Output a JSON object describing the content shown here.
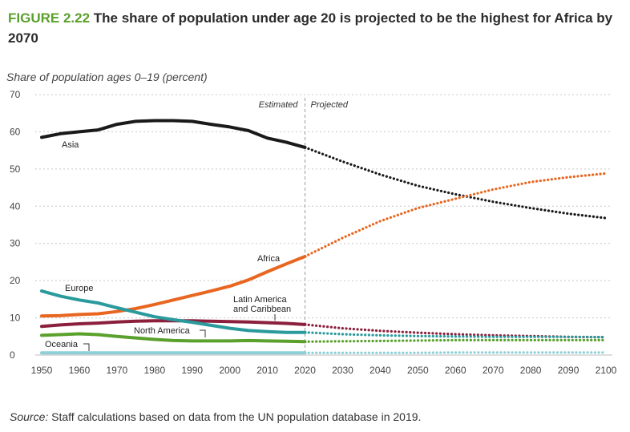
{
  "figure": {
    "label": "FIGURE 2.22",
    "title": "The share of population under age 20 is projected to be the highest for Africa by 2070",
    "subtitle": "Share of population ages 0–19 (percent)",
    "source_label": "Source:",
    "source_text": "Staff calculations based on data from the UN population database in 2019."
  },
  "chart_data": {
    "type": "line",
    "title": "The share of population under age 20 is projected to be the highest for Africa by 2070",
    "ylabel": "Share of population ages 0–19 (percent)",
    "xlabel": "",
    "xlim": [
      1950,
      2100
    ],
    "ylim": [
      0,
      70
    ],
    "x_ticks": [
      1950,
      1960,
      1970,
      1980,
      1990,
      2000,
      2010,
      2020,
      2030,
      2040,
      2050,
      2060,
      2070,
      2080,
      2090,
      2100
    ],
    "y_ticks": [
      0,
      10,
      20,
      30,
      40,
      50,
      60,
      70
    ],
    "grid": "horizontal-dashed",
    "split_year": 2020,
    "split_labels": {
      "estimated": "Estimated",
      "projected": "Projected"
    },
    "x": [
      1950,
      1955,
      1960,
      1965,
      1970,
      1975,
      1980,
      1985,
      1990,
      1995,
      2000,
      2005,
      2010,
      2015,
      2020,
      2030,
      2040,
      2050,
      2060,
      2070,
      2080,
      2090,
      2100
    ],
    "series": [
      {
        "name": "Asia",
        "label": "Asia",
        "color": "#1a1a1a",
        "values": [
          58.5,
          59.5,
          60.0,
          60.5,
          62.0,
          62.8,
          63.0,
          63.0,
          62.8,
          62.0,
          61.3,
          60.3,
          58.3,
          57.2,
          55.8,
          52.0,
          48.5,
          45.5,
          43.2,
          41.2,
          39.5,
          38.0,
          36.8
        ]
      },
      {
        "name": "Africa",
        "label": "Africa",
        "color": "#e8661f",
        "values": [
          10.5,
          10.6,
          10.9,
          11.1,
          11.7,
          12.5,
          13.6,
          14.8,
          16.0,
          17.2,
          18.5,
          20.2,
          22.4,
          24.5,
          26.5,
          31.5,
          36.0,
          39.5,
          42.0,
          44.5,
          46.5,
          47.8,
          48.8
        ]
      },
      {
        "name": "Latin America and Caribbean",
        "label": "Latin America and Caribbean",
        "color": "#8b1f3c",
        "values": [
          7.7,
          8.1,
          8.4,
          8.6,
          8.9,
          9.1,
          9.2,
          9.2,
          9.2,
          9.1,
          9.0,
          8.9,
          8.7,
          8.5,
          8.2,
          7.2,
          6.5,
          6.0,
          5.6,
          5.3,
          5.1,
          4.9,
          4.8
        ]
      },
      {
        "name": "Europe",
        "label": "Europe",
        "color": "#2a9a9c",
        "values": [
          17.2,
          15.8,
          14.8,
          14.0,
          12.7,
          11.5,
          10.3,
          9.5,
          8.8,
          8.0,
          7.2,
          6.6,
          6.3,
          6.1,
          6.1,
          5.6,
          5.3,
          5.1,
          5.0,
          4.9,
          4.9,
          4.9,
          4.8
        ]
      },
      {
        "name": "North America",
        "label": "North America",
        "color": "#5aa02c",
        "values": [
          5.3,
          5.5,
          5.7,
          5.5,
          5.0,
          4.6,
          4.2,
          3.9,
          3.8,
          3.8,
          3.8,
          3.9,
          3.8,
          3.7,
          3.6,
          3.7,
          3.8,
          3.9,
          4.0,
          4.0,
          4.0,
          4.0,
          4.0
        ]
      },
      {
        "name": "Oceania",
        "label": "Oceania",
        "color": "#8ecfd8",
        "values": [
          0.6,
          0.6,
          0.6,
          0.6,
          0.6,
          0.6,
          0.6,
          0.6,
          0.6,
          0.6,
          0.6,
          0.6,
          0.6,
          0.6,
          0.6,
          0.6,
          0.6,
          0.6,
          0.7,
          0.7,
          0.7,
          0.7,
          0.7
        ]
      }
    ]
  }
}
